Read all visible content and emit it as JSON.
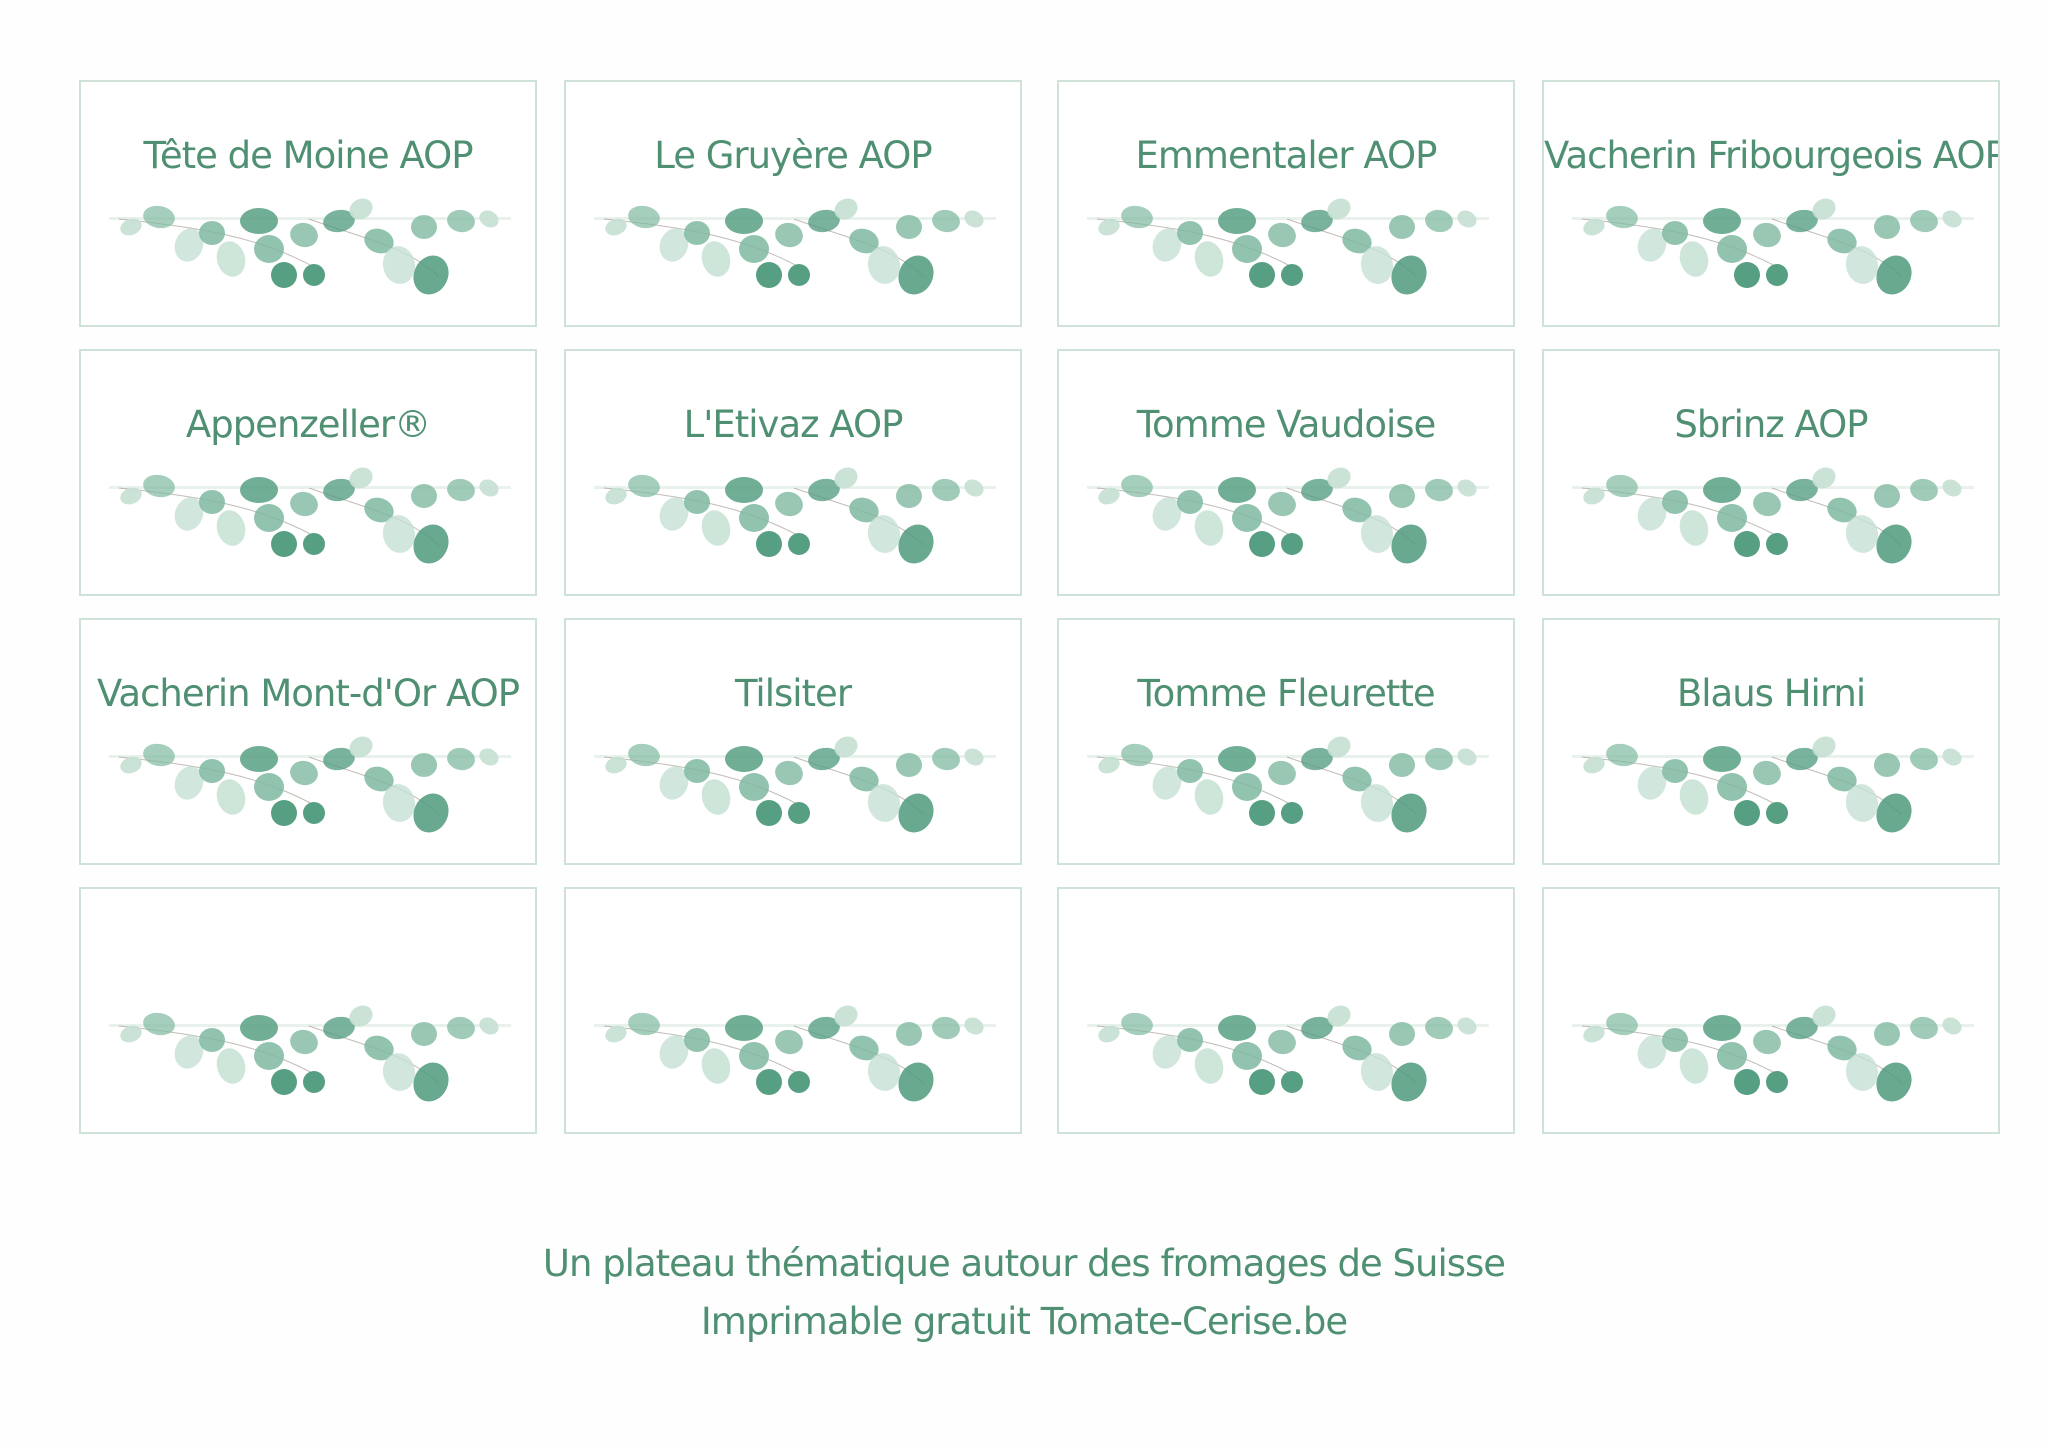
{
  "cards": [
    {
      "label": "Tête de Moine AOP"
    },
    {
      "label": "Le Gruyère AOP"
    },
    {
      "label": "Emmentaler AOP"
    },
    {
      "label": "Vacherin Fribourgeois AOP"
    },
    {
      "label": "Appenzeller®"
    },
    {
      "label": "L'Etivaz AOP"
    },
    {
      "label": "Tomme Vaudoise"
    },
    {
      "label": "Sbrinz AOP"
    },
    {
      "label": "Vacherin Mont-d'Or AOP"
    },
    {
      "label": "Tilsiter"
    },
    {
      "label": "Tomme Fleurette"
    },
    {
      "label": "Blaus Hirni"
    },
    {
      "label": ""
    },
    {
      "label": ""
    },
    {
      "label": ""
    },
    {
      "label": ""
    }
  ],
  "footer": {
    "line1": "Un plateau thématique autour des fromages de Suisse",
    "line2": "Imprimable gratuit Tomate-Cerise.be"
  },
  "colors": {
    "text": "#4f8f72",
    "border": "#cfe2d8",
    "leaf_dark": "#4e9a7c",
    "leaf_mid": "#7fb9a0",
    "leaf_light": "#c5e0d3"
  },
  "decoration_icon": "eucalyptus-garland-icon"
}
